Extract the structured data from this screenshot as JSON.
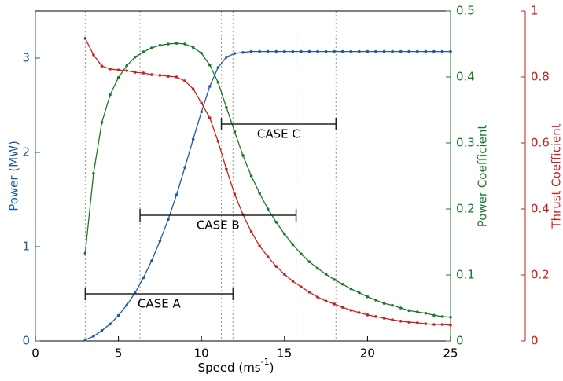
{
  "chart_data": {
    "type": "line",
    "xlabel": [
      "Speed (ms",
      "-1",
      ")"
    ],
    "xlim": [
      0,
      25
    ],
    "xticks": [
      0,
      5,
      10,
      15,
      20,
      25
    ],
    "ylabel": "Power (MW)",
    "ylim": [
      0,
      3.5
    ],
    "yticks": [
      0,
      1,
      2,
      3
    ],
    "y2label": "Power Coefficient",
    "y2lim": [
      0,
      0.5
    ],
    "y2ticks": [
      0,
      0.1,
      0.2,
      0.3,
      0.4,
      0.5
    ],
    "y3label": "Thrust Coefficient",
    "y3lim": [
      0,
      1
    ],
    "y3ticks": [
      0,
      0.2,
      0.4,
      0.6,
      0.8,
      1
    ],
    "x": [
      3,
      3.5,
      4,
      4.5,
      5,
      5.5,
      6,
      6.5,
      7,
      7.5,
      8,
      8.5,
      9,
      9.5,
      10,
      10.5,
      11,
      11.5,
      12,
      12.5,
      13,
      13.5,
      14,
      14.5,
      15,
      15.5,
      16,
      16.5,
      17,
      17.5,
      18,
      18.5,
      19,
      19.5,
      20,
      20.5,
      21,
      21.5,
      22,
      22.5,
      23,
      23.5,
      24,
      24.5,
      25
    ],
    "series": [
      {
        "name": "Power",
        "color": "#1f5b9e",
        "axis": "y",
        "values": [
          0.01,
          0.05,
          0.11,
          0.18,
          0.27,
          0.38,
          0.51,
          0.67,
          0.85,
          1.06,
          1.29,
          1.55,
          1.84,
          2.14,
          2.43,
          2.7,
          2.9,
          3.01,
          3.05,
          3.06,
          3.07,
          3.07,
          3.07,
          3.07,
          3.07,
          3.07,
          3.07,
          3.07,
          3.07,
          3.07,
          3.07,
          3.07,
          3.07,
          3.07,
          3.07,
          3.07,
          3.07,
          3.07,
          3.07,
          3.07,
          3.07,
          3.07,
          3.07,
          3.07,
          3.07
        ]
      },
      {
        "name": "Power Coefficient",
        "color": "#1a7a2a",
        "axis": "y2",
        "values": [
          0.133,
          0.254,
          0.331,
          0.373,
          0.399,
          0.417,
          0.43,
          0.438,
          0.444,
          0.448,
          0.45,
          0.451,
          0.45,
          0.445,
          0.436,
          0.418,
          0.392,
          0.354,
          0.317,
          0.281,
          0.25,
          0.224,
          0.2,
          0.18,
          0.162,
          0.146,
          0.132,
          0.12,
          0.11,
          0.101,
          0.093,
          0.086,
          0.079,
          0.073,
          0.067,
          0.062,
          0.057,
          0.054,
          0.05,
          0.046,
          0.044,
          0.042,
          0.039,
          0.037,
          0.036
        ]
      },
      {
        "name": "Thrust Coefficient",
        "color": "#cc1f1f",
        "axis": "y3",
        "values": [
          0.917,
          0.867,
          0.833,
          0.824,
          0.821,
          0.819,
          0.814,
          0.812,
          0.807,
          0.805,
          0.802,
          0.8,
          0.788,
          0.764,
          0.721,
          0.676,
          0.605,
          0.521,
          0.445,
          0.383,
          0.331,
          0.288,
          0.255,
          0.226,
          0.202,
          0.181,
          0.164,
          0.148,
          0.133,
          0.121,
          0.112,
          0.102,
          0.093,
          0.086,
          0.079,
          0.074,
          0.069,
          0.064,
          0.06,
          0.057,
          0.055,
          0.052,
          0.05,
          0.05,
          0.048
        ]
      }
    ],
    "cases": [
      {
        "label": "CASE A",
        "range": [
          3,
          11.9
        ]
      },
      {
        "label": "CASE B",
        "range": [
          6.3,
          15.7
        ]
      },
      {
        "label": "CASE C",
        "range": [
          11.2,
          18.1
        ]
      }
    ]
  }
}
